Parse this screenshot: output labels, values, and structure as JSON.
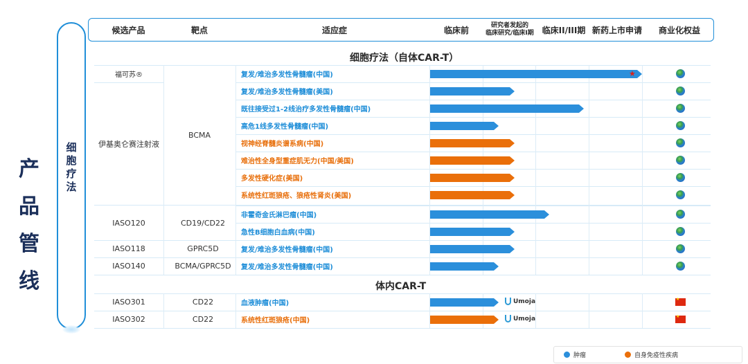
{
  "side_title": [
    "产",
    "品",
    "管",
    "线"
  ],
  "side_category": [
    "细",
    "胞",
    "疗",
    "法"
  ],
  "header": {
    "candidate": "候选产品",
    "target": "靶点",
    "indication": "适应症",
    "preclinical": "临床前",
    "iit_line1": "研究者发起的",
    "iit_line2": "临床研究/临床I期",
    "phase23": "临床II/III期",
    "nda": "新药上市申请",
    "rights": "商业化权益"
  },
  "sections": {
    "autologous": "细胞疗法（自体CAR-T）",
    "in_vivo": "体内CAR-T"
  },
  "products": {
    "fucaso": "福可苏®",
    "eque": "伊基奥仑赛注射液",
    "iaso120": "IASO120",
    "iaso118": "IASO118",
    "iaso140": "IASO140",
    "iaso301": "IASO301",
    "iaso302": "IASO302"
  },
  "targets": {
    "bcma": "BCMA",
    "cd19_cd22": "CD19/CD22",
    "gprc5d": "GPRC5D",
    "bcma_gprc5d": "BCMA/GPRC5D",
    "cd22_a": "CD22",
    "cd22_b": "CD22"
  },
  "indications": [
    {
      "text": "复发/难治多发性骨髓瘤(中国)",
      "type": "oncology",
      "stage": 4,
      "rights": "global",
      "star": true
    },
    {
      "text": "复发/难治多发性骨髓瘤(美国)",
      "type": "oncology",
      "stage": 1.6,
      "rights": "global"
    },
    {
      "text": "既往接受过1-2线治疗多发性骨髓瘤(中国)",
      "type": "oncology",
      "stage": 2.9,
      "rights": "global"
    },
    {
      "text": "高危1线多发性骨髓瘤(中国)",
      "type": "oncology",
      "stage": 1.3,
      "rights": "global"
    },
    {
      "text": "视神经脊髓炎谱系病(中国)",
      "type": "autoimmune",
      "stage": 1.6,
      "rights": "global"
    },
    {
      "text": "难治性全身型重症肌无力(中国/美国)",
      "type": "autoimmune",
      "stage": 1.6,
      "rights": "global"
    },
    {
      "text": "多发性硬化症(美国)",
      "type": "autoimmune",
      "stage": 1.6,
      "rights": "global"
    },
    {
      "text": "系统性红斑狼疮、狼疮性肾炎(美国)",
      "type": "autoimmune",
      "stage": 1.6,
      "rights": "global"
    },
    {
      "text": "非霍奇金氏淋巴瘤(中国)",
      "type": "oncology",
      "stage": 2.25,
      "rights": "global"
    },
    {
      "text": "急性B细胞白血病(中国)",
      "type": "oncology",
      "stage": 1.6,
      "rights": "global"
    },
    {
      "text": "复发/难治多发性骨髓瘤(中国)",
      "type": "oncology",
      "stage": 1.6,
      "rights": "global"
    },
    {
      "text": "复发/难治多发性骨髓瘤(中国)",
      "type": "oncology",
      "stage": 1.3,
      "rights": "global"
    },
    {
      "text": "血液肿瘤(中国)",
      "type": "oncology",
      "stage": 1.3,
      "rights": "china",
      "partner": "Umoja"
    },
    {
      "text": "系统性红斑狼疮(中国)",
      "type": "autoimmune",
      "stage": 1.3,
      "rights": "china",
      "partner": "Umoja"
    }
  ],
  "colors": {
    "oncology": "#2b8fdb",
    "autoimmune": "#ea6f0a",
    "accent": "#1f8ed8"
  },
  "legend": {
    "oncology": "肿瘤",
    "autoimmune": "自身免疫性疾病"
  }
}
